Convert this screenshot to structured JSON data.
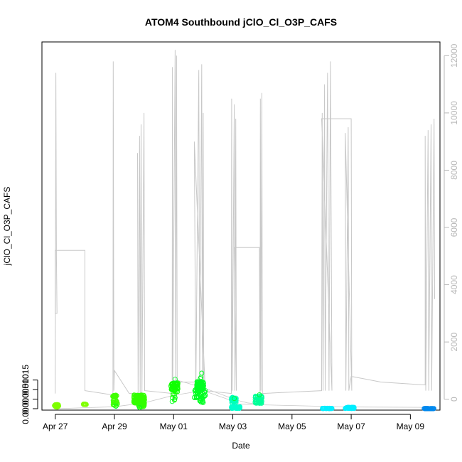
{
  "chart_data": {
    "type": "scatter",
    "title": "ATOM4 Southbound jClO_Cl_O3P_CAFS",
    "xlabel": "Date",
    "ylabel": "jClO_Cl_O3P_CAFS",
    "x_ticks": [
      "Apr 27",
      "Apr 29",
      "May 01",
      "May 03",
      "May 05",
      "May 07",
      "May 09"
    ],
    "x_tick_days": [
      27,
      29,
      31,
      33,
      35,
      37,
      39
    ],
    "xlim": [
      26.55,
      40.0
    ],
    "y_ticks": [
      "0.00000",
      "0.00005",
      "0.00010",
      "0.00015"
    ],
    "y_tick_values": [
      0,
      5e-05,
      0.0001,
      0.00015
    ],
    "ylim": [
      -7.5e-06,
      0.00192
    ],
    "y2_ticks": [
      "0",
      "2000",
      "4000",
      "6000",
      "8000",
      "10000",
      "12000"
    ],
    "y2_tick_values": [
      0,
      2000,
      4000,
      6000,
      8000,
      10000,
      12000
    ],
    "y2lim": [
      -380,
      12480
    ],
    "grid": false,
    "legend": "none",
    "colors": {
      "altitude_line": "#c8c8c8",
      "point_green": "#00ff22",
      "point_lime": "#66ff00",
      "point_cyan": "#00ffee",
      "point_blue": "#0099ff"
    },
    "point_groups": [
      {
        "x_range": [
          26.97,
          27.12
        ],
        "y_center": 1.5e-05,
        "y_spread": 7e-06,
        "n": 40,
        "color": "#7fff00"
      },
      {
        "x_range": [
          27.95,
          28.05
        ],
        "y_center": 2.2e-05,
        "y_spread": 2.5e-06,
        "n": 12,
        "color": "#7fff00"
      },
      {
        "x_range": [
          28.94,
          29.08
        ],
        "y_center": 6.6e-05,
        "y_spread": 5e-06,
        "n": 25,
        "color": "#40ff00"
      },
      {
        "x_range": [
          28.94,
          29.12
        ],
        "y_center": 3.2e-05,
        "y_spread": 1.5e-05,
        "n": 25,
        "color": "#40ff00"
      },
      {
        "x_range": [
          29.65,
          30.02
        ],
        "y_center": 5e-05,
        "y_spread": 2.2e-05,
        "n": 120,
        "color": "#33ff00"
      },
      {
        "x_range": [
          29.8,
          30.02
        ],
        "y_center": 3e-05,
        "y_spread": 2e-05,
        "n": 40,
        "color": "#33ff00"
      },
      {
        "x_range": [
          30.9,
          31.15
        ],
        "y_center": 0.000123,
        "y_spread": 1.2e-05,
        "n": 45,
        "color": "#11ff00"
      },
      {
        "x_range": [
          30.9,
          31.15
        ],
        "y_center": 0.0001,
        "y_spread": 1.2e-05,
        "n": 20,
        "color": "#11ff00"
      },
      {
        "x_range": [
          30.9,
          31.05
        ],
        "y_center": 6e-05,
        "y_spread": 2e-05,
        "n": 6,
        "color": "#11ff00"
      },
      {
        "x_range": [
          31.78,
          32.02
        ],
        "y_center": 0.000125,
        "y_spread": 2e-05,
        "n": 80,
        "color": "#00ff22"
      },
      {
        "x_range": [
          31.7,
          32.1
        ],
        "y_center": 8e-05,
        "y_spread": 2.5e-05,
        "n": 35,
        "color": "#00ff22"
      },
      {
        "x_range": [
          31.8,
          32.0
        ],
        "y_center": 5e-05,
        "y_spread": 1.8e-05,
        "n": 15,
        "color": "#00ff22"
      },
      {
        "x_range": [
          32.95,
          33.12
        ],
        "y_center": 4.5e-05,
        "y_spread": 1.5e-05,
        "n": 60,
        "color": "#00ffbb"
      },
      {
        "x_range": [
          32.95,
          33.25
        ],
        "y_center": 6e-06,
        "y_spread": 5e-06,
        "n": 60,
        "color": "#00ffcc"
      },
      {
        "x_range": [
          33.75,
          34.0
        ],
        "y_center": 4.8e-05,
        "y_spread": 2e-05,
        "n": 60,
        "color": "#00ff99"
      },
      {
        "x_range": [
          36.0,
          36.35
        ],
        "y_center": 1.5e-06,
        "y_spread": 1.2e-06,
        "n": 45,
        "color": "#00eeff"
      },
      {
        "x_range": [
          36.8,
          37.1
        ],
        "y_center": 4.5e-06,
        "y_spread": 4e-06,
        "n": 60,
        "color": "#00eeff"
      },
      {
        "x_range": [
          39.45,
          39.8
        ],
        "y_center": 5e-07,
        "y_spread": 8e-07,
        "n": 50,
        "color": "#0088ee"
      }
    ],
    "outliers": [
      [
        31.95,
        0.000186
      ],
      [
        31.92,
        0.000164
      ],
      [
        31.05,
        0.000154
      ],
      [
        31.9,
        0.000158
      ],
      [
        30.95,
        3.8e-05
      ],
      [
        29.05,
        1.3e-05
      ],
      [
        29.85,
        5e-06
      ],
      [
        33.05,
        5.3e-05
      ],
      [
        33.9,
        7.3e-05
      ],
      [
        31.05,
        5.8e-05
      ],
      [
        32.0,
        3.2e-05
      ]
    ],
    "altitude_profile": [
      [
        27.0,
        200
      ],
      [
        27.02,
        11400
      ],
      [
        27.04,
        5000
      ],
      [
        27.06,
        3000
      ],
      [
        27.0,
        3000
      ],
      [
        27.0,
        5200
      ],
      [
        28.0,
        5200
      ],
      [
        28.0,
        300
      ],
      [
        28.0,
        300
      ],
      [
        28.95,
        150
      ],
      [
        28.96,
        11800
      ],
      [
        28.98,
        300
      ],
      [
        29.0,
        1000
      ],
      [
        29.5,
        200
      ],
      [
        29.8,
        200
      ],
      [
        29.78,
        8600
      ],
      [
        29.8,
        200
      ],
      [
        29.85,
        9200
      ],
      [
        29.87,
        200
      ],
      [
        29.9,
        9600
      ],
      [
        29.93,
        200
      ],
      [
        30.0,
        10000
      ],
      [
        30.02,
        300
      ],
      [
        30.95,
        200
      ],
      [
        30.96,
        11600
      ],
      [
        30.97,
        300
      ],
      [
        31.05,
        12200
      ],
      [
        31.07,
        300
      ],
      [
        31.1,
        12000
      ],
      [
        31.12,
        500
      ],
      [
        31.05,
        600
      ],
      [
        32.05,
        600
      ],
      [
        32.07,
        300
      ],
      [
        31.7,
        9000
      ],
      [
        31.75,
        200
      ],
      [
        31.85,
        11500
      ],
      [
        31.88,
        300
      ],
      [
        31.95,
        11700
      ],
      [
        31.97,
        300
      ],
      [
        32.0,
        10000
      ],
      [
        32.02,
        300
      ],
      [
        32.95,
        200
      ],
      [
        32.96,
        10500
      ],
      [
        32.98,
        300
      ],
      [
        33.05,
        10300
      ],
      [
        33.07,
        300
      ],
      [
        33.1,
        9800
      ],
      [
        33.12,
        300
      ],
      [
        33.05,
        5300
      ],
      [
        33.9,
        5300
      ],
      [
        33.92,
        200
      ],
      [
        33.93,
        10500
      ],
      [
        33.95,
        300
      ],
      [
        33.98,
        10700
      ],
      [
        34.0,
        200
      ],
      [
        36.0,
        300
      ],
      [
        36.02,
        10000
      ],
      [
        36.05,
        300
      ],
      [
        36.1,
        11000
      ],
      [
        36.12,
        300
      ],
      [
        36.2,
        11400
      ],
      [
        36.25,
        300
      ],
      [
        36.3,
        11800
      ],
      [
        36.35,
        300
      ],
      [
        36.0,
        9800
      ],
      [
        37.0,
        9800
      ],
      [
        37.02,
        300
      ],
      [
        36.8,
        9300
      ],
      [
        36.82,
        300
      ],
      [
        36.9,
        9500
      ],
      [
        36.92,
        300
      ],
      [
        37.0,
        800
      ],
      [
        38.0,
        600
      ],
      [
        39.5,
        500
      ],
      [
        39.5,
        9200
      ],
      [
        39.52,
        300
      ],
      [
        39.6,
        9400
      ],
      [
        39.62,
        300
      ],
      [
        39.7,
        9600
      ],
      [
        39.72,
        300
      ],
      [
        39.8,
        9800
      ],
      [
        39.82,
        3500
      ]
    ],
    "trend_line": [
      [
        27.0,
        0.0
      ],
      [
        29.0,
        1e-05
      ],
      [
        30.0,
        3e-05
      ],
      [
        31.0,
        7e-05
      ],
      [
        32.0,
        9.5e-05
      ],
      [
        33.0,
        4e-05
      ],
      [
        33.2,
        2.5e-05
      ],
      [
        34.0,
        2e-05
      ],
      [
        37.0,
        9e-06
      ],
      [
        39.5,
        7e-06
      ]
    ],
    "trend_line_2": [
      [
        31.05,
        0.000152
      ],
      [
        31.6,
        0.000128
      ],
      [
        32.1,
        0.000104
      ],
      [
        32.7,
        7e-05
      ],
      [
        33.1,
        4.6e-05
      ],
      [
        33.5,
        3e-05
      ],
      [
        33.9,
        2.4e-05
      ]
    ]
  }
}
